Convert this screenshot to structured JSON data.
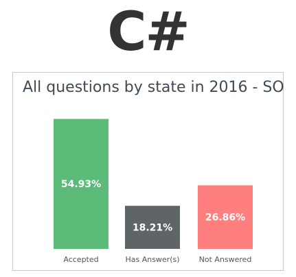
{
  "heading": "C#",
  "chart_data": {
    "type": "bar",
    "title": "All questions by state in 2016 - SO",
    "xlabel": "",
    "ylabel": "",
    "ylim": [
      0,
      60
    ],
    "grid": false,
    "categories": [
      "Accepted",
      "Has Answer(s)",
      "Not Answered"
    ],
    "values": [
      54.93,
      18.21,
      26.86
    ],
    "data_labels": [
      "54.93%",
      "18.21%",
      "26.86%"
    ],
    "colors": [
      "#5DBB7A",
      "#5F6566",
      "#FF7F7F"
    ]
  }
}
